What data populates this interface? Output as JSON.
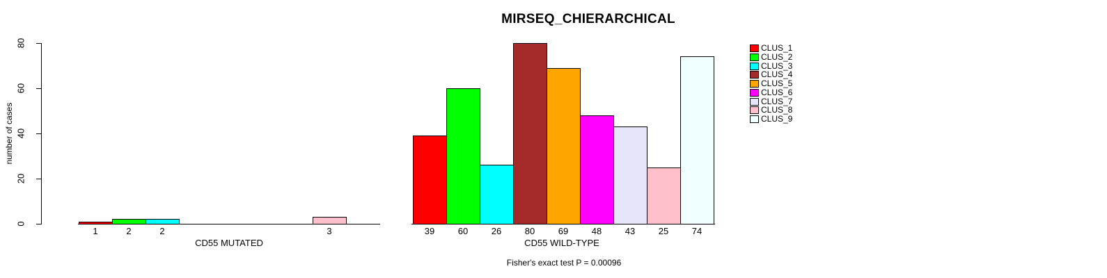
{
  "title": "MIRSEQ_CHIERARCHICAL",
  "subtitle": "Fisher's exact test P = 0.00096",
  "ylabel": "number of cases",
  "palette": [
    "#FF0000",
    "#00FF00",
    "#00FFFF",
    "#A52A2A",
    "#FFA500",
    "#FF00FF",
    "#E6E6FA",
    "#FFC0CB",
    "#F0FFFF"
  ],
  "legend": {
    "position": "right",
    "items": [
      {
        "label": "CLUS_1",
        "color": "#FF0000"
      },
      {
        "label": "CLUS_2",
        "color": "#00FF00"
      },
      {
        "label": "CLUS_3",
        "color": "#00FFFF"
      },
      {
        "label": "CLUS_4",
        "color": "#A52A2A"
      },
      {
        "label": "CLUS_5",
        "color": "#FFA500"
      },
      {
        "label": "CLUS_6",
        "color": "#FF00FF"
      },
      {
        "label": "CLUS_7",
        "color": "#E6E6FA"
      },
      {
        "label": "CLUS_8",
        "color": "#FFC0CB"
      },
      {
        "label": "CLUS_9",
        "color": "#F0FFFF"
      }
    ]
  },
  "chart_data": [
    {
      "type": "bar",
      "title": "MIRSEQ_CHIERARCHICAL",
      "xlabel": "CD55 MUTATED",
      "ylabel": "number of cases",
      "ylim": [
        0,
        80
      ],
      "yticks": [
        0,
        20,
        40,
        60,
        80
      ],
      "grid": false,
      "categories": [
        "CLUS_1",
        "CLUS_2",
        "CLUS_3",
        "CLUS_4",
        "CLUS_5",
        "CLUS_6",
        "CLUS_7",
        "CLUS_8",
        "CLUS_9"
      ],
      "values": [
        1,
        2,
        2,
        0,
        0,
        0,
        0,
        3,
        0
      ],
      "bar_labels": [
        "1",
        "2",
        "2",
        "",
        "",
        "",
        "",
        "3",
        ""
      ],
      "colors": [
        "#FF0000",
        "#00FF00",
        "#00FFFF",
        "#A52A2A",
        "#FFA500",
        "#FF00FF",
        "#E6E6FA",
        "#FFC0CB",
        "#F0FFFF"
      ]
    },
    {
      "type": "bar",
      "title": "MIRSEQ_CHIERARCHICAL",
      "xlabel": "CD55 WILD-TYPE",
      "ylabel": "number of cases",
      "ylim": [
        0,
        80
      ],
      "yticks": [
        0,
        20,
        40,
        60,
        80
      ],
      "grid": false,
      "categories": [
        "CLUS_1",
        "CLUS_2",
        "CLUS_3",
        "CLUS_4",
        "CLUS_5",
        "CLUS_6",
        "CLUS_7",
        "CLUS_8",
        "CLUS_9"
      ],
      "values": [
        39,
        60,
        26,
        80,
        69,
        48,
        43,
        25,
        74
      ],
      "bar_labels": [
        "39",
        "60",
        "26",
        "80",
        "69",
        "48",
        "43",
        "25",
        "74"
      ],
      "colors": [
        "#FF0000",
        "#00FF00",
        "#00FFFF",
        "#A52A2A",
        "#FFA500",
        "#FF00FF",
        "#E6E6FA",
        "#FFC0CB",
        "#F0FFFF"
      ]
    }
  ]
}
